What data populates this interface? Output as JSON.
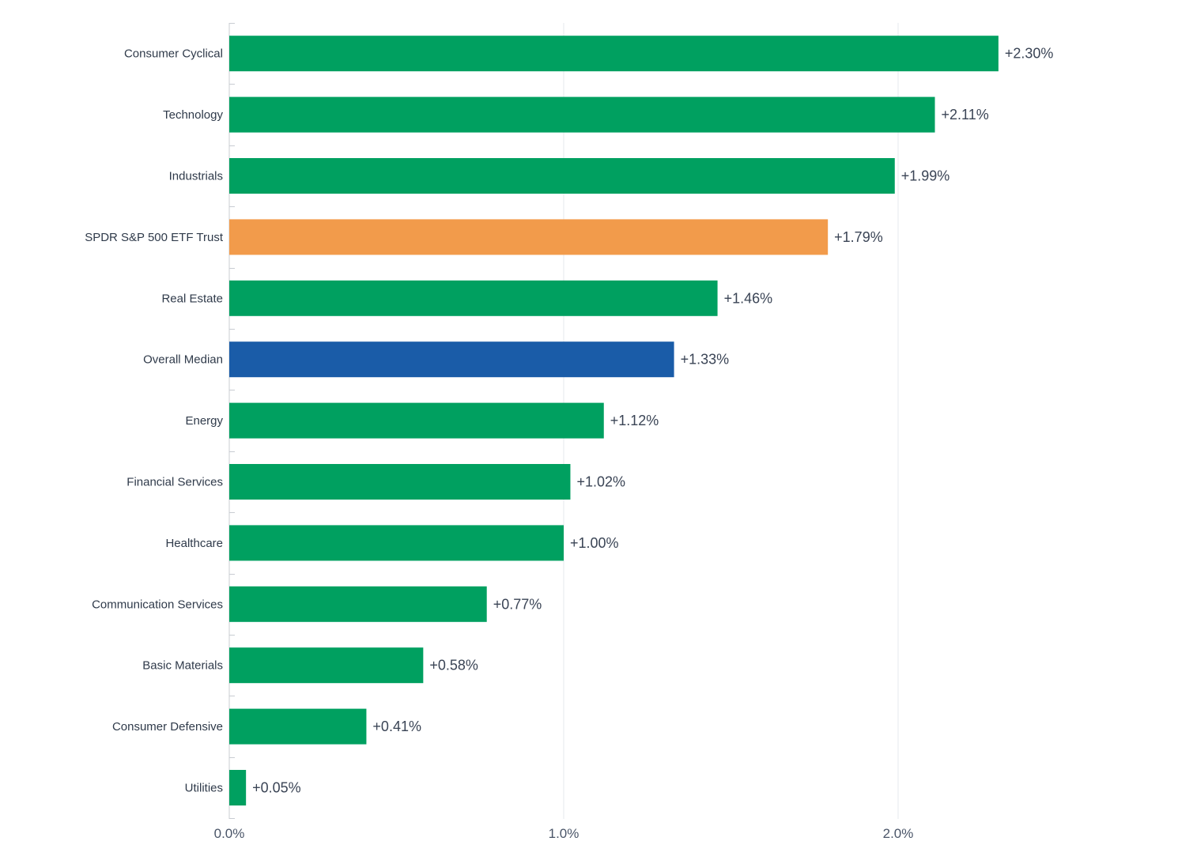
{
  "chart_data": {
    "type": "bar",
    "orientation": "horizontal",
    "title": "",
    "xlabel": "",
    "ylabel": "",
    "xlim": [
      0,
      2.6
    ],
    "x_ticks": [
      0,
      1,
      2
    ],
    "x_tick_labels": [
      "0.0%",
      "1.0%",
      "2.0%"
    ],
    "grid": "vertical",
    "legend": "none",
    "categories": [
      "Consumer Cyclical",
      "Technology",
      "Industrials",
      "SPDR S&P 500 ETF Trust",
      "Real Estate",
      "Overall Median",
      "Energy",
      "Financial Services",
      "Healthcare",
      "Communication Services",
      "Basic Materials",
      "Consumer Defensive",
      "Utilities"
    ],
    "values": [
      2.3,
      2.11,
      1.99,
      1.79,
      1.46,
      1.33,
      1.12,
      1.02,
      1.0,
      0.77,
      0.58,
      0.41,
      0.05
    ],
    "value_labels": [
      "+2.30%",
      "+2.11%",
      "+1.99%",
      "+1.79%",
      "+1.46%",
      "+1.33%",
      "+1.12%",
      "+1.02%",
      "+1.00%",
      "+0.77%",
      "+0.58%",
      "+0.41%",
      "+0.05%"
    ],
    "bar_colors": [
      "#00a060",
      "#00a060",
      "#00a060",
      "#f29b4b",
      "#00a060",
      "#1a5ca8",
      "#00a060",
      "#00a060",
      "#00a060",
      "#00a060",
      "#00a060",
      "#00a060",
      "#00a060"
    ]
  },
  "colors": {
    "positive": "#00a060",
    "benchmark": "#f29b4b",
    "median": "#1a5ca8",
    "gridline": "#e6e8ec",
    "axis": "#c8ccd2"
  }
}
